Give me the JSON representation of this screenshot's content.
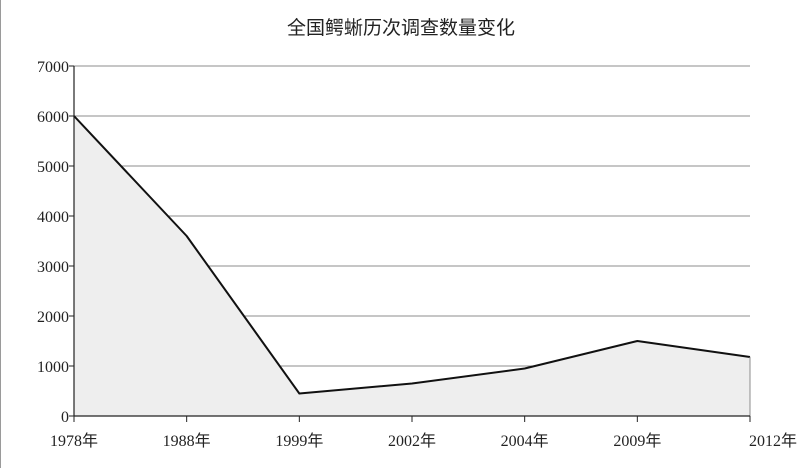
{
  "chart_data": {
    "type": "area",
    "title": "全国鳄蜥历次调查数量变化",
    "xlabel": "",
    "ylabel": "",
    "categories": [
      "1978年",
      "1988年",
      "1999年",
      "2002年",
      "2004年",
      "2009年",
      "2012年"
    ],
    "series": [
      {
        "values": [
          6000,
          3600,
          450,
          650,
          950,
          1500,
          1180
        ]
      }
    ],
    "ylim": [
      0,
      7000
    ],
    "yticks": [
      0,
      1000,
      2000,
      3000,
      4000,
      5000,
      6000,
      7000
    ],
    "grid": true,
    "legend": "none",
    "colors": {
      "line": "#111111",
      "fill": "#eeeeee",
      "grid": "#8c8c8c",
      "axis": "#222222"
    }
  }
}
